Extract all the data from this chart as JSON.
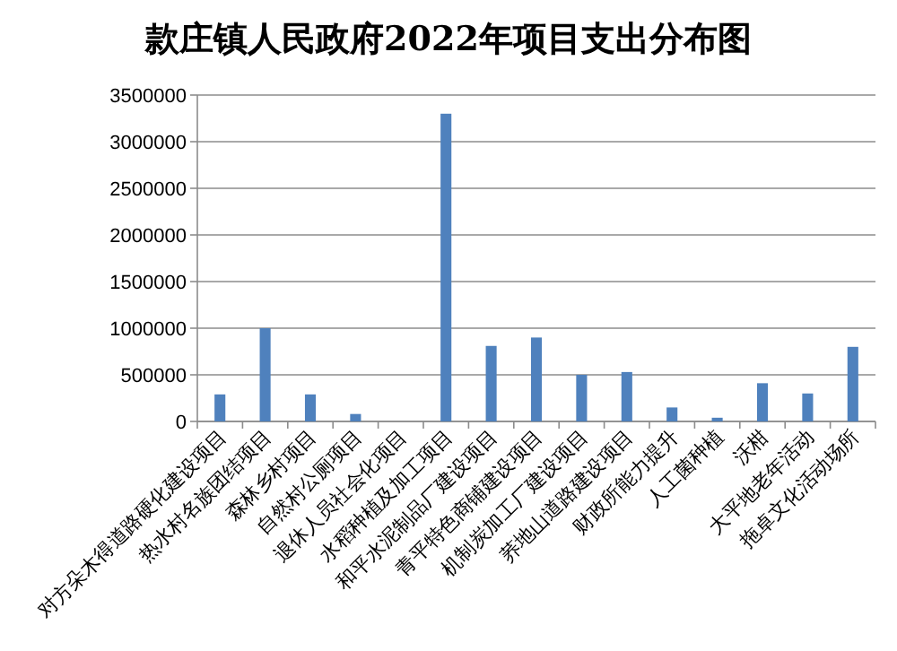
{
  "chart_data": {
    "type": "bar",
    "title": "款庄镇人民政府2022年项目支出分布图",
    "categories": [
      "对方朵木得道路硬化建设项目",
      "热水村名族团结项目",
      "森林乡村项目",
      "自然村公厕项目",
      "退休人员社会化项目",
      "水稻种植及加工项目",
      "和平水泥制品厂建设项目",
      "青平特色商铺建设项目",
      "机制炭加工厂建设项目",
      "荞地山道路建设项目",
      "财政所能力提升",
      "人工菌种植",
      "沃柑",
      "大平地老年活动",
      "拖卓文化活动场所"
    ],
    "values": [
      290000,
      1000000,
      290000,
      80000,
      0,
      3300000,
      810000,
      900000,
      500000,
      530000,
      150000,
      40000,
      410000,
      300000,
      800000
    ],
    "color": "#4f81bd",
    "ylim": [
      0,
      3500000
    ],
    "yticks": [
      0,
      500000,
      1000000,
      1500000,
      2000000,
      2500000,
      3000000,
      3500000
    ],
    "grid": "y"
  }
}
